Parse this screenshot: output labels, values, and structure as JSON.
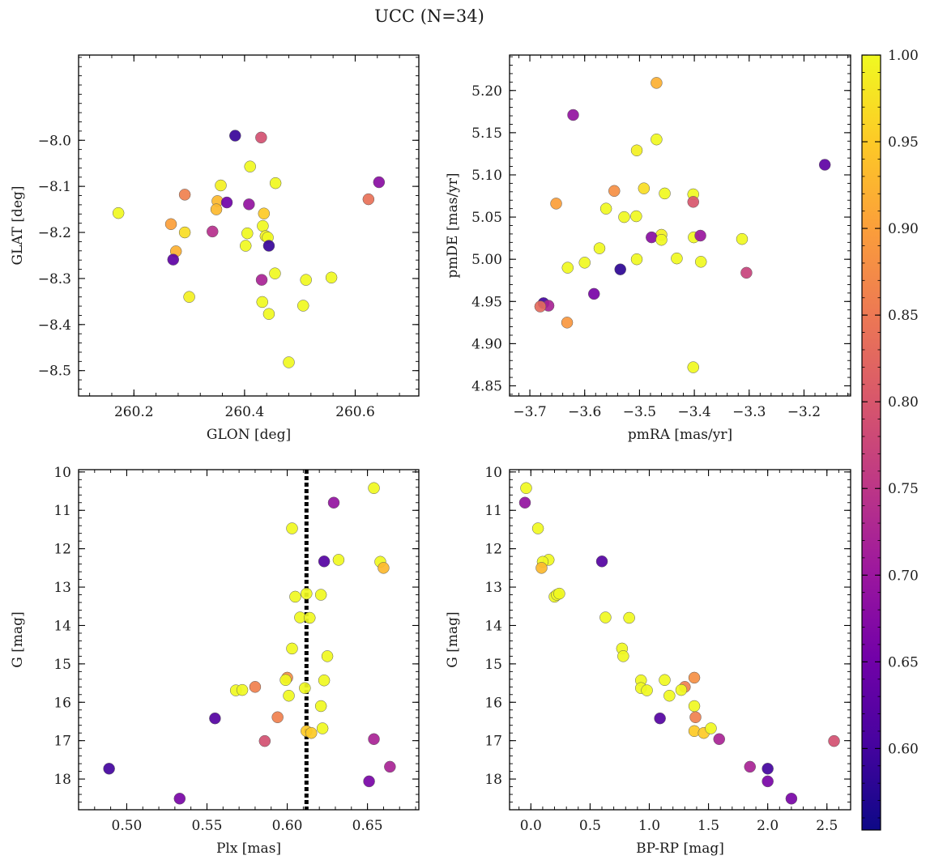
{
  "figure": {
    "title": "UCC (N=34)"
  },
  "colormap": {
    "name": "plasma",
    "stops": [
      "#0d0887",
      "#46039f",
      "#7201a8",
      "#9c179e",
      "#bd3786",
      "#d8576b",
      "#ed7953",
      "#fb9f3a",
      "#fdca26",
      "#f0f921"
    ],
    "range": [
      0.553,
      1.0
    ],
    "ticks": [
      0.6,
      0.65,
      0.7,
      0.75,
      0.8,
      0.85,
      0.9,
      0.95,
      1.0
    ],
    "tick_labels": [
      "0.60",
      "0.65",
      "0.70",
      "0.75",
      "0.80",
      "0.85",
      "0.90",
      "0.95",
      "1.00"
    ]
  },
  "chart_data": [
    {
      "type": "scatter",
      "xlabel": "GLON [deg]",
      "ylabel": "GLAT [deg]",
      "xlim": [
        260.1,
        260.715
      ],
      "ylim": [
        -8.555,
        -7.815
      ],
      "y_inverted": false,
      "xticks": [
        260.2,
        260.4,
        260.6
      ],
      "xtick_labels": [
        "260.2",
        "260.4",
        "260.6"
      ],
      "yticks": [
        -8.0,
        -8.1,
        -8.2,
        -8.3,
        -8.4,
        -8.5
      ],
      "ytick_labels": [
        "−8.0",
        "−8.1",
        "−8.2",
        "−8.3",
        "−8.4",
        "−8.5"
      ],
      "points": [
        {
          "x": 260.383,
          "y": -7.99,
          "c": 0.59
        },
        {
          "x": 260.43,
          "y": -7.994,
          "c": 0.79
        },
        {
          "x": 260.41,
          "y": -8.057,
          "c": 1.0
        },
        {
          "x": 260.456,
          "y": -8.093,
          "c": 1.0
        },
        {
          "x": 260.643,
          "y": -8.091,
          "c": 0.68
        },
        {
          "x": 260.357,
          "y": -8.098,
          "c": 0.99
        },
        {
          "x": 260.292,
          "y": -8.118,
          "c": 0.86
        },
        {
          "x": 260.351,
          "y": -8.132,
          "c": 0.93
        },
        {
          "x": 260.368,
          "y": -8.135,
          "c": 0.65
        },
        {
          "x": 260.408,
          "y": -8.139,
          "c": 0.69
        },
        {
          "x": 260.624,
          "y": -8.128,
          "c": 0.84
        },
        {
          "x": 260.172,
          "y": -8.158,
          "c": 1.0
        },
        {
          "x": 260.349,
          "y": -8.15,
          "c": 0.93
        },
        {
          "x": 260.435,
          "y": -8.159,
          "c": 0.95
        },
        {
          "x": 260.267,
          "y": -8.182,
          "c": 0.9
        },
        {
          "x": 260.433,
          "y": -8.186,
          "c": 1.0
        },
        {
          "x": 260.292,
          "y": -8.2,
          "c": 0.97
        },
        {
          "x": 260.342,
          "y": -8.198,
          "c": 0.74
        },
        {
          "x": 260.405,
          "y": -8.202,
          "c": 1.0
        },
        {
          "x": 260.438,
          "y": -8.208,
          "c": 0.99
        },
        {
          "x": 260.442,
          "y": -8.211,
          "c": 1.0
        },
        {
          "x": 260.402,
          "y": -8.229,
          "c": 1.0
        },
        {
          "x": 260.444,
          "y": -8.229,
          "c": 0.59
        },
        {
          "x": 260.276,
          "y": -8.241,
          "c": 0.92
        },
        {
          "x": 260.271,
          "y": -8.259,
          "c": 0.63
        },
        {
          "x": 260.455,
          "y": -8.289,
          "c": 1.0
        },
        {
          "x": 260.431,
          "y": -8.303,
          "c": 0.72
        },
        {
          "x": 260.511,
          "y": -8.303,
          "c": 1.0
        },
        {
          "x": 260.557,
          "y": -8.298,
          "c": 1.0
        },
        {
          "x": 260.432,
          "y": -8.351,
          "c": 1.0
        },
        {
          "x": 260.506,
          "y": -8.359,
          "c": 1.0
        },
        {
          "x": 260.444,
          "y": -8.377,
          "c": 1.0
        },
        {
          "x": 260.48,
          "y": -8.482,
          "c": 1.0
        },
        {
          "x": 260.3,
          "y": -8.34,
          "c": 0.99
        }
      ]
    },
    {
      "type": "scatter",
      "xlabel": "pmRA [mas/yr]",
      "ylabel": "pmDE [mas/yr]",
      "xlim": [
        -3.737,
        -3.115
      ],
      "ylim": [
        4.838,
        5.242
      ],
      "y_inverted": false,
      "xticks": [
        -3.7,
        -3.6,
        -3.5,
        -3.4,
        -3.3,
        -3.2
      ],
      "xtick_labels": [
        "−3.7",
        "−3.6",
        "−3.5",
        "−3.4",
        "−3.3",
        "−3.2"
      ],
      "yticks": [
        4.85,
        4.9,
        4.95,
        5.0,
        5.05,
        5.1,
        5.15,
        5.2
      ],
      "ytick_labels": [
        "4.85",
        "4.90",
        "4.95",
        "5.00",
        "5.05",
        "5.10",
        "5.15",
        "5.20"
      ],
      "points": [
        {
          "x": -3.469,
          "y": 5.209,
          "c": 0.92
        },
        {
          "x": -3.621,
          "y": 5.171,
          "c": 0.69
        },
        {
          "x": -3.469,
          "y": 5.142,
          "c": 1.0
        },
        {
          "x": -3.505,
          "y": 5.129,
          "c": 0.99
        },
        {
          "x": -3.162,
          "y": 5.112,
          "c": 0.63
        },
        {
          "x": -3.492,
          "y": 5.084,
          "c": 0.97
        },
        {
          "x": -3.546,
          "y": 5.081,
          "c": 0.88
        },
        {
          "x": -3.454,
          "y": 5.078,
          "c": 1.0
        },
        {
          "x": -3.402,
          "y": 5.077,
          "c": 1.0
        },
        {
          "x": -3.652,
          "y": 5.066,
          "c": 0.9
        },
        {
          "x": -3.402,
          "y": 5.068,
          "c": 0.8
        },
        {
          "x": -3.561,
          "y": 5.06,
          "c": 1.0
        },
        {
          "x": -3.506,
          "y": 5.051,
          "c": 1.0
        },
        {
          "x": -3.528,
          "y": 5.05,
          "c": 1.0
        },
        {
          "x": -3.46,
          "y": 5.029,
          "c": 0.99
        },
        {
          "x": -3.478,
          "y": 5.026,
          "c": 0.68
        },
        {
          "x": -3.46,
          "y": 5.023,
          "c": 1.0
        },
        {
          "x": -3.401,
          "y": 5.026,
          "c": 1.0
        },
        {
          "x": -3.389,
          "y": 5.028,
          "c": 0.7
        },
        {
          "x": -3.313,
          "y": 5.024,
          "c": 1.0
        },
        {
          "x": -3.573,
          "y": 5.013,
          "c": 1.0
        },
        {
          "x": -3.432,
          "y": 5.001,
          "c": 1.0
        },
        {
          "x": -3.505,
          "y": 5.0,
          "c": 1.0
        },
        {
          "x": -3.388,
          "y": 4.997,
          "c": 1.0
        },
        {
          "x": -3.6,
          "y": 4.996,
          "c": 1.0
        },
        {
          "x": -3.631,
          "y": 4.99,
          "c": 1.0
        },
        {
          "x": -3.535,
          "y": 4.988,
          "c": 0.58
        },
        {
          "x": -3.305,
          "y": 4.984,
          "c": 0.77
        },
        {
          "x": -3.583,
          "y": 4.959,
          "c": 0.66
        },
        {
          "x": -3.675,
          "y": 4.948,
          "c": 0.6
        },
        {
          "x": -3.666,
          "y": 4.945,
          "c": 0.72
        },
        {
          "x": -3.681,
          "y": 4.944,
          "c": 0.83
        },
        {
          "x": -3.632,
          "y": 4.925,
          "c": 0.89
        },
        {
          "x": -3.402,
          "y": 4.872,
          "c": 1.0
        }
      ]
    },
    {
      "type": "scatter",
      "xlabel": "Plx [mas]",
      "ylabel": "G [mag]",
      "xlim": [
        0.47,
        0.682
      ],
      "ylim": [
        18.8,
        9.94
      ],
      "y_inverted": true,
      "xticks": [
        0.5,
        0.55,
        0.6,
        0.65
      ],
      "xtick_labels": [
        "0.50",
        "0.55",
        "0.60",
        "0.65"
      ],
      "yticks": [
        10,
        11,
        12,
        13,
        14,
        15,
        16,
        17,
        18
      ],
      "ytick_labels": [
        "10",
        "11",
        "12",
        "13",
        "14",
        "15",
        "16",
        "17",
        "18"
      ],
      "vline": {
        "x": 0.612,
        "style": "dotted"
      },
      "points": [
        {
          "x": 0.654,
          "y": 10.42,
          "c": 1.0
        },
        {
          "x": 0.629,
          "y": 10.8,
          "c": 0.69
        },
        {
          "x": 0.603,
          "y": 11.47,
          "c": 1.0
        },
        {
          "x": 0.632,
          "y": 12.29,
          "c": 1.0
        },
        {
          "x": 0.623,
          "y": 12.33,
          "c": 0.62
        },
        {
          "x": 0.658,
          "y": 12.34,
          "c": 1.0
        },
        {
          "x": 0.66,
          "y": 12.5,
          "c": 0.93
        },
        {
          "x": 0.612,
          "y": 13.17,
          "c": 1.0
        },
        {
          "x": 0.621,
          "y": 13.2,
          "c": 1.0
        },
        {
          "x": 0.605,
          "y": 13.25,
          "c": 1.0
        },
        {
          "x": 0.608,
          "y": 13.79,
          "c": 1.0
        },
        {
          "x": 0.614,
          "y": 13.8,
          "c": 1.0
        },
        {
          "x": 0.603,
          "y": 14.6,
          "c": 1.0
        },
        {
          "x": 0.625,
          "y": 14.8,
          "c": 1.0
        },
        {
          "x": 0.6,
          "y": 15.36,
          "c": 0.88
        },
        {
          "x": 0.599,
          "y": 15.42,
          "c": 1.0
        },
        {
          "x": 0.623,
          "y": 15.43,
          "c": 1.0
        },
        {
          "x": 0.58,
          "y": 15.6,
          "c": 0.86
        },
        {
          "x": 0.611,
          "y": 15.63,
          "c": 1.0
        },
        {
          "x": 0.568,
          "y": 15.69,
          "c": 1.0
        },
        {
          "x": 0.572,
          "y": 15.68,
          "c": 1.0
        },
        {
          "x": 0.601,
          "y": 15.83,
          "c": 1.0
        },
        {
          "x": 0.621,
          "y": 16.1,
          "c": 1.0
        },
        {
          "x": 0.594,
          "y": 16.39,
          "c": 0.86
        },
        {
          "x": 0.555,
          "y": 16.42,
          "c": 0.62
        },
        {
          "x": 0.622,
          "y": 16.68,
          "c": 1.0
        },
        {
          "x": 0.612,
          "y": 16.75,
          "c": 0.95
        },
        {
          "x": 0.615,
          "y": 16.8,
          "c": 0.95
        },
        {
          "x": 0.654,
          "y": 16.96,
          "c": 0.72
        },
        {
          "x": 0.586,
          "y": 17.01,
          "c": 0.79
        },
        {
          "x": 0.664,
          "y": 17.68,
          "c": 0.72
        },
        {
          "x": 0.489,
          "y": 17.73,
          "c": 0.6
        },
        {
          "x": 0.651,
          "y": 18.06,
          "c": 0.66
        },
        {
          "x": 0.533,
          "y": 18.51,
          "c": 0.66
        }
      ]
    },
    {
      "type": "scatter",
      "xlabel": "BP-RP [mag]",
      "ylabel": "G [mag]",
      "xlim": [
        -0.18,
        2.7
      ],
      "ylim": [
        18.8,
        9.94
      ],
      "y_inverted": true,
      "xticks": [
        0.0,
        0.5,
        1.0,
        1.5,
        2.0,
        2.5
      ],
      "xtick_labels": [
        "0.0",
        "0.5",
        "1.0",
        "1.5",
        "2.0",
        "2.5"
      ],
      "yticks": [
        10,
        11,
        12,
        13,
        14,
        15,
        16,
        17,
        18
      ],
      "ytick_labels": [
        "10",
        "11",
        "12",
        "13",
        "14",
        "15",
        "16",
        "17",
        "18"
      ],
      "points": [
        {
          "x": -0.04,
          "y": 10.42,
          "c": 1.0
        },
        {
          "x": -0.05,
          "y": 10.8,
          "c": 0.69
        },
        {
          "x": 0.06,
          "y": 11.47,
          "c": 1.0
        },
        {
          "x": 0.15,
          "y": 12.29,
          "c": 1.0
        },
        {
          "x": 0.1,
          "y": 12.34,
          "c": 1.0
        },
        {
          "x": 0.09,
          "y": 12.5,
          "c": 0.93
        },
        {
          "x": 0.6,
          "y": 12.33,
          "c": 0.62
        },
        {
          "x": 0.2,
          "y": 13.25,
          "c": 1.0
        },
        {
          "x": 0.22,
          "y": 13.2,
          "c": 1.0
        },
        {
          "x": 0.24,
          "y": 13.17,
          "c": 1.0
        },
        {
          "x": 0.63,
          "y": 13.79,
          "c": 1.0
        },
        {
          "x": 0.83,
          "y": 13.8,
          "c": 1.0
        },
        {
          "x": 0.77,
          "y": 14.6,
          "c": 1.0
        },
        {
          "x": 0.78,
          "y": 14.8,
          "c": 1.0
        },
        {
          "x": 0.93,
          "y": 15.43,
          "c": 1.0
        },
        {
          "x": 1.13,
          "y": 15.42,
          "c": 1.0
        },
        {
          "x": 1.38,
          "y": 15.36,
          "c": 0.88
        },
        {
          "x": 0.93,
          "y": 15.63,
          "c": 1.0
        },
        {
          "x": 0.98,
          "y": 15.69,
          "c": 1.0
        },
        {
          "x": 1.3,
          "y": 15.6,
          "c": 0.86
        },
        {
          "x": 1.27,
          "y": 15.68,
          "c": 1.0
        },
        {
          "x": 1.17,
          "y": 15.83,
          "c": 1.0
        },
        {
          "x": 1.38,
          "y": 16.1,
          "c": 1.0
        },
        {
          "x": 1.09,
          "y": 16.42,
          "c": 0.62
        },
        {
          "x": 1.39,
          "y": 16.39,
          "c": 0.86
        },
        {
          "x": 1.38,
          "y": 16.75,
          "c": 0.95
        },
        {
          "x": 1.46,
          "y": 16.8,
          "c": 0.95
        },
        {
          "x": 1.52,
          "y": 16.68,
          "c": 1.0
        },
        {
          "x": 1.59,
          "y": 16.96,
          "c": 0.72
        },
        {
          "x": 2.56,
          "y": 17.01,
          "c": 0.79
        },
        {
          "x": 1.85,
          "y": 17.68,
          "c": 0.72
        },
        {
          "x": 2.0,
          "y": 17.73,
          "c": 0.6
        },
        {
          "x": 2.0,
          "y": 18.06,
          "c": 0.66
        },
        {
          "x": 2.2,
          "y": 18.51,
          "c": 0.66
        }
      ]
    }
  ]
}
